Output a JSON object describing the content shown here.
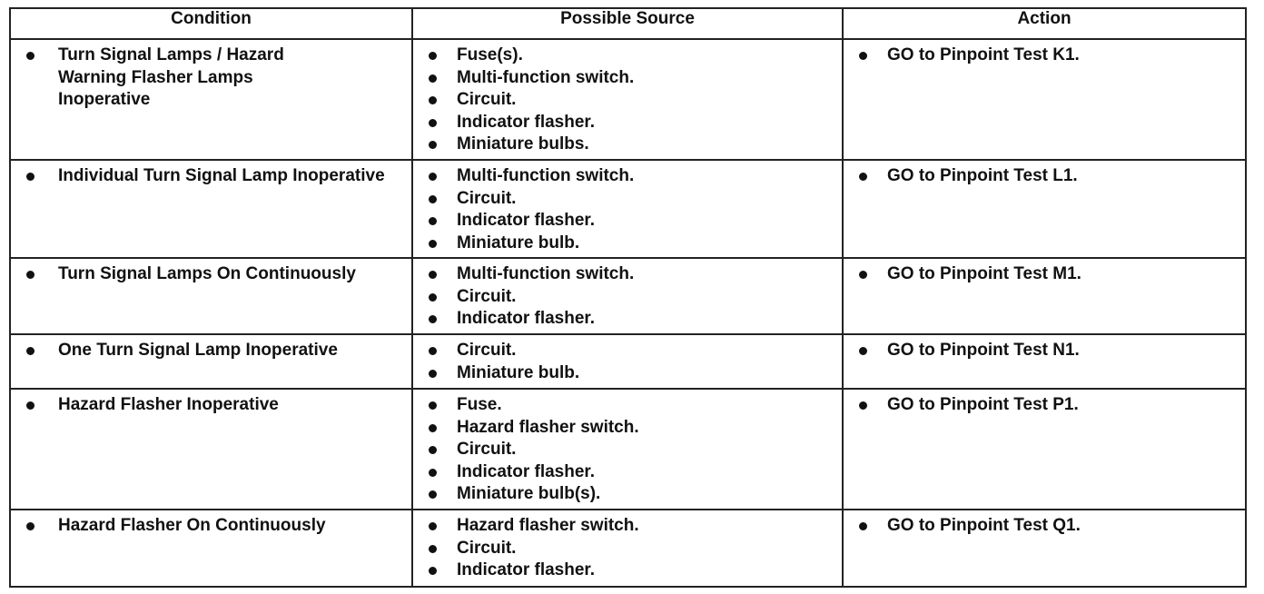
{
  "table": {
    "header": [
      "Condition",
      "Possible Source",
      "Action"
    ],
    "rows": [
      {
        "condition": "Turn Signal Lamps / Hazard Warning Flasher Lamps Inoperative",
        "sources": [
          "Fuse(s).",
          "Multi-function switch.",
          "Circuit.",
          "Indicator flasher.",
          "Miniature bulbs."
        ],
        "action": "GO to Pinpoint Test K1."
      },
      {
        "condition": "Individual Turn Signal Lamp Inoperative",
        "sources": [
          "Multi-function switch.",
          "Circuit.",
          "Indicator flasher.",
          "Miniature bulb."
        ],
        "action": "GO to Pinpoint Test L1."
      },
      {
        "condition": "Turn Signal Lamps On Continuously",
        "sources": [
          "Multi-function switch.",
          "Circuit.",
          "Indicator flasher."
        ],
        "action": "GO to Pinpoint Test M1."
      },
      {
        "condition": "One Turn Signal Lamp Inoperative",
        "sources": [
          "Circuit.",
          "Miniature bulb."
        ],
        "action": "GO to Pinpoint Test N1."
      },
      {
        "condition": "Hazard Flasher Inoperative",
        "sources": [
          "Fuse.",
          "Hazard flasher switch.",
          "Circuit.",
          "Indicator flasher.",
          "Miniature bulb(s)."
        ],
        "action": "GO to Pinpoint Test P1."
      },
      {
        "condition": "Hazard Flasher On Continuously",
        "sources": [
          "Hazard flasher switch.",
          "Circuit.",
          "Indicator flasher."
        ],
        "action": "GO to Pinpoint Test Q1."
      }
    ]
  }
}
